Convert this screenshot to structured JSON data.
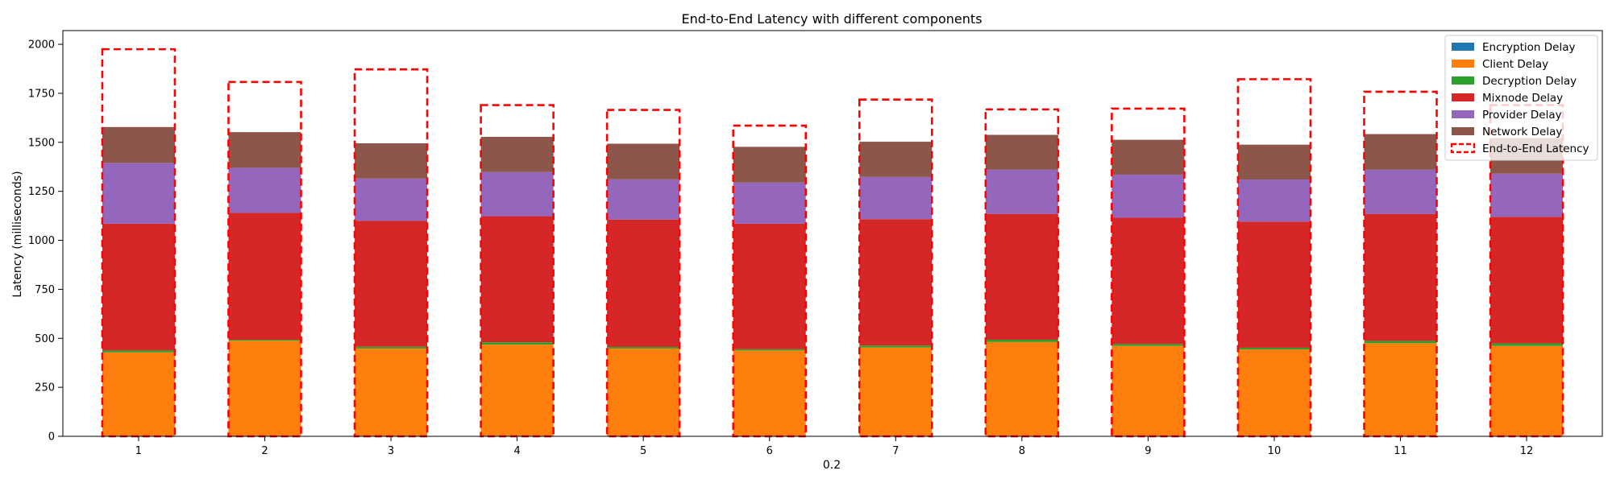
{
  "chart_data": {
    "type": "bar",
    "stacked": true,
    "title": "End-to-End Latency with different components",
    "xlabel": "0.2",
    "ylabel": "Latency (milliseconds)",
    "categories": [
      "1",
      "2",
      "3",
      "4",
      "5",
      "6",
      "7",
      "8",
      "9",
      "10",
      "11",
      "12"
    ],
    "ylim": [
      0,
      2070
    ],
    "yticks": [
      0,
      250,
      500,
      750,
      1000,
      1250,
      1500,
      1750,
      2000
    ],
    "legend_position": "top-right",
    "grid": false,
    "series": [
      {
        "name": "Encryption Delay",
        "color": "#1f77b4",
        "values": [
          3,
          3,
          3,
          3,
          3,
          3,
          3,
          3,
          3,
          3,
          3,
          3
        ]
      },
      {
        "name": "Client Delay",
        "color": "#ff7f0e",
        "values": [
          425,
          485,
          445,
          465,
          445,
          435,
          450,
          478,
          458,
          440,
          472,
          458
        ]
      },
      {
        "name": "Decryption Delay",
        "color": "#2ca02c",
        "values": [
          10,
          5,
          9,
          12,
          8,
          7,
          10,
          12,
          10,
          9,
          12,
          13
        ]
      },
      {
        "name": "Mixnode Delay",
        "color": "#d62728",
        "values": [
          647,
          647,
          643,
          643,
          650,
          640,
          645,
          642,
          644,
          643,
          648,
          646
        ]
      },
      {
        "name": "Provider Delay",
        "color": "#9467bd",
        "values": [
          310,
          230,
          215,
          225,
          205,
          210,
          215,
          225,
          220,
          215,
          225,
          220
        ]
      },
      {
        "name": "Network Delay",
        "color": "#8c564b",
        "values": [
          183,
          182,
          180,
          180,
          182,
          182,
          180,
          178,
          178,
          178,
          182,
          182
        ]
      }
    ],
    "end_to_end": {
      "name": "End-to-End Latency",
      "color": "#ff0000",
      "style": "dashed",
      "values": [
        1975,
        1808,
        1872,
        1690,
        1665,
        1585,
        1718,
        1668,
        1672,
        1822,
        1758,
        1690
      ]
    }
  }
}
